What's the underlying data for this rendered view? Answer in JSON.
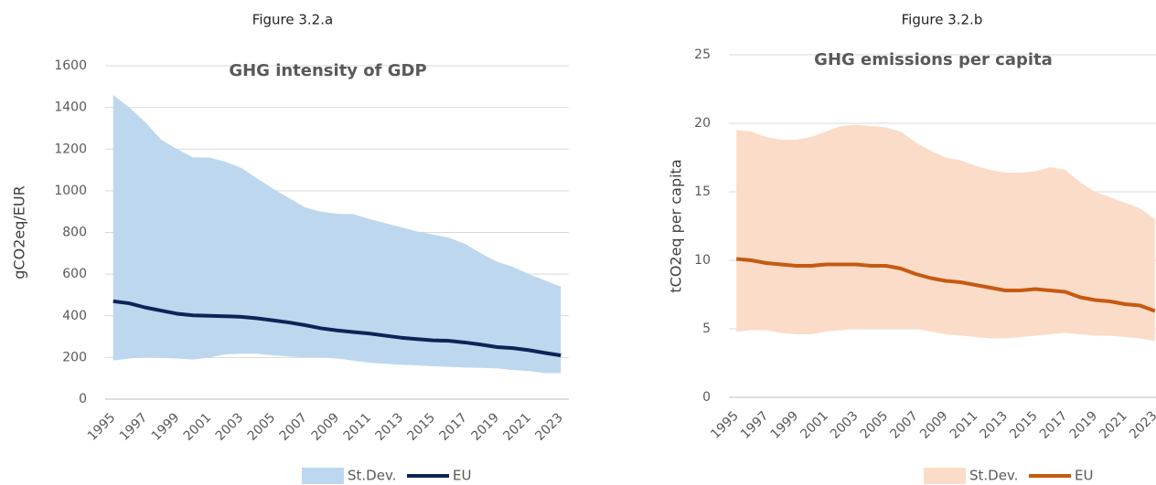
{
  "chart_data": [
    {
      "type": "line",
      "figure": "Figure 3.2.a",
      "title": "GHG intensity of GDP",
      "y_label": "gCO2eq/EUR",
      "categories": [
        "1995",
        null,
        "1997",
        null,
        "1999",
        null,
        "2001",
        null,
        "2003",
        null,
        "2005",
        null,
        "2007",
        null,
        "2009",
        null,
        "2011",
        null,
        "2013",
        null,
        "2015",
        null,
        "2017",
        null,
        "2019",
        null,
        "2021",
        null,
        "2023"
      ],
      "ylim": [
        0,
        1600
      ],
      "yticks": [
        0,
        200,
        400,
        600,
        800,
        1000,
        1200,
        1400,
        1600
      ],
      "grid": true,
      "series": [
        {
          "name": "St.Dev.",
          "color": "#bdd7ee",
          "high": [
            1460,
            1400,
            1330,
            1245,
            1200,
            1160,
            1160,
            1140,
            1110,
            1060,
            1010,
            965,
            920,
            900,
            890,
            888,
            865,
            845,
            825,
            805,
            790,
            775,
            745,
            700,
            660,
            635,
            600,
            570,
            540
          ],
          "low": [
            185,
            195,
            200,
            198,
            195,
            190,
            200,
            215,
            218,
            218,
            210,
            205,
            200,
            200,
            195,
            185,
            175,
            170,
            165,
            162,
            158,
            155,
            152,
            150,
            148,
            140,
            135,
            125,
            125
          ]
        },
        {
          "name": "EU",
          "color": "#0b2559",
          "values": [
            470,
            460,
            440,
            425,
            410,
            402,
            400,
            398,
            395,
            388,
            378,
            368,
            355,
            340,
            330,
            322,
            315,
            305,
            295,
            288,
            282,
            280,
            272,
            262,
            250,
            245,
            235,
            222,
            210
          ]
        }
      ]
    },
    {
      "type": "line",
      "figure": "Figure 3.2.b",
      "title": "GHG emissions per capita",
      "y_label": "tCO2eq per capita",
      "categories": [
        "1995",
        null,
        "1997",
        null,
        "1999",
        null,
        "2001",
        null,
        "2003",
        null,
        "2005",
        null,
        "2007",
        null,
        "2009",
        null,
        "2011",
        null,
        "2013",
        null,
        "2015",
        null,
        "2017",
        null,
        "2019",
        null,
        "2021",
        null,
        "2023"
      ],
      "ylim": [
        0,
        25
      ],
      "yticks": [
        0,
        5,
        10,
        15,
        20,
        25
      ],
      "grid": true,
      "series": [
        {
          "name": "St.Dev.",
          "color": "#fbdcc8",
          "high": [
            19.5,
            19.4,
            19.0,
            18.8,
            18.8,
            19.0,
            19.4,
            19.8,
            19.9,
            19.8,
            19.7,
            19.4,
            18.6,
            18.0,
            17.5,
            17.3,
            16.9,
            16.6,
            16.4,
            16.4,
            16.5,
            16.8,
            16.6,
            15.7,
            15.0,
            14.6,
            14.2,
            13.8,
            13.0
          ],
          "low": [
            4.8,
            4.9,
            4.9,
            4.7,
            4.6,
            4.6,
            4.8,
            4.9,
            5.0,
            5.0,
            5.0,
            5.0,
            5.0,
            4.8,
            4.6,
            4.5,
            4.4,
            4.3,
            4.3,
            4.4,
            4.5,
            4.6,
            4.7,
            4.6,
            4.5,
            4.5,
            4.4,
            4.3,
            4.1
          ]
        },
        {
          "name": "EU",
          "color": "#c55a11",
          "values": [
            10.1,
            10.0,
            9.8,
            9.7,
            9.6,
            9.6,
            9.7,
            9.7,
            9.7,
            9.6,
            9.6,
            9.4,
            9.0,
            8.7,
            8.5,
            8.4,
            8.2,
            8.0,
            7.8,
            7.8,
            7.9,
            7.8,
            7.7,
            7.3,
            7.1,
            7.0,
            6.8,
            6.7,
            6.3
          ]
        }
      ]
    }
  ]
}
